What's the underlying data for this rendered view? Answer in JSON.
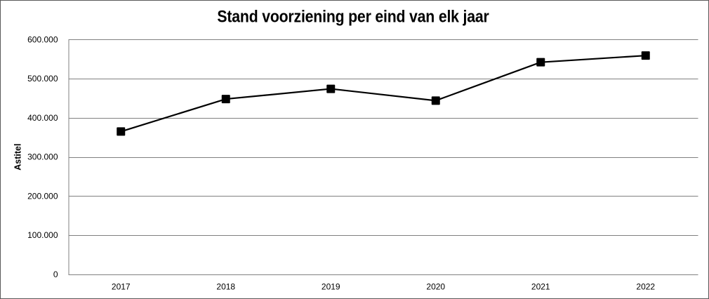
{
  "chart_data": {
    "type": "line",
    "title": "Stand voorziening per eind van elk jaar",
    "ylabel": "Astitel",
    "xlabel": "",
    "categories": [
      "2017",
      "2018",
      "2019",
      "2020",
      "2021",
      "2022"
    ],
    "values": [
      365000,
      448000,
      474000,
      444000,
      542000,
      559000
    ],
    "ylim": [
      0,
      600000
    ],
    "ytick_step": 100000,
    "ytick_labels": [
      "0",
      "100.000",
      "200.000",
      "300.000",
      "400.000",
      "500.000",
      "600.000"
    ],
    "grid": true,
    "legend": false,
    "marker": "square",
    "colors": {
      "series_line": "#000000",
      "marker_fill": "#000000",
      "gridline": "#808080",
      "axis_line": "#808080",
      "title_text": "#000000",
      "tick_text": "#000000",
      "chart_border": "#595959",
      "background": "#ffffff"
    }
  }
}
